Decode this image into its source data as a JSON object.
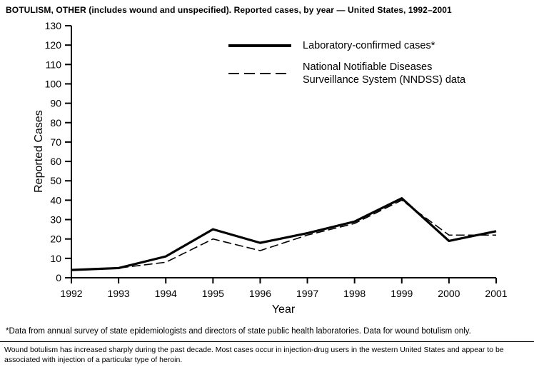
{
  "title": "BOTULISM, OTHER (includes wound and unspecified). Reported cases, by year — United States, 1992–2001",
  "chart_data": {
    "type": "line",
    "x": [
      1992,
      1993,
      1994,
      1995,
      1996,
      1997,
      1998,
      1999,
      2000,
      2001
    ],
    "series": [
      {
        "name": "Laboratory-confirmed cases*",
        "style": "solid",
        "values": [
          4,
          5,
          11,
          25,
          18,
          23,
          29,
          41,
          19,
          24
        ]
      },
      {
        "name": "National Notifiable Diseases Surveillance System (NNDSS) data",
        "style": "dashed",
        "values": [
          4,
          5,
          8,
          20,
          14,
          22,
          28,
          40,
          22,
          22
        ]
      }
    ],
    "xlabel": "Year",
    "ylabel": "Reported Cases",
    "ylim": [
      0,
      130
    ],
    "ytick_step": 10,
    "grid": false,
    "legend_position": "inside-top-center",
    "line_color": "#000000"
  },
  "legend": {
    "series1_label": "Laboratory-confirmed cases*",
    "series2_label_line1": "National Notifiable Diseases",
    "series2_label_line2": "Surveillance System (NNDSS) data"
  },
  "footnotes": {
    "asterisk": "*Data from annual survey of state epidemiologists and directors of state public health laboratories. Data for wound botulism only.",
    "summary": "Wound botulism has increased sharply during the past decade. Most cases occur in injection-drug users in the western United States and appear to be associated with injection of a particular type of heroin."
  }
}
